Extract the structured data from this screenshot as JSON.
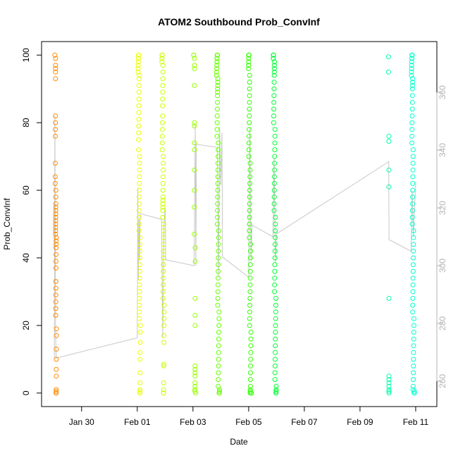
{
  "chart_data": {
    "type": "scatter",
    "title": "ATOM2 Southbound Prob_ConvInf",
    "xlabel": "Date",
    "ylabel": "Prob_ConvInf",
    "x_axis": {
      "type": "date",
      "range": [
        "2024-01-28T13:30",
        "2024-02-11T18:15"
      ],
      "ticks": [
        {
          "label": "Jan 30",
          "value": "2024-01-30T00:00"
        },
        {
          "label": "Feb 01",
          "value": "2024-02-01T00:00"
        },
        {
          "label": "Feb 03",
          "value": "2024-02-03T00:00"
        },
        {
          "label": "Feb 05",
          "value": "2024-02-05T00:00"
        },
        {
          "label": "Feb 07",
          "value": "2024-02-07T00:00"
        },
        {
          "label": "Feb 09",
          "value": "2024-02-09T00:00"
        },
        {
          "label": "Feb 11",
          "value": "2024-02-11T00:00"
        }
      ]
    },
    "y_axis": {
      "range": [
        -4,
        104
      ],
      "ticks": [
        0,
        20,
        40,
        60,
        80,
        100
      ]
    },
    "y2_axis": {
      "range": [
        251.2,
        377.6
      ],
      "ticks": [
        260,
        280,
        300,
        320,
        340,
        360
      ],
      "color": "#b3b3b3"
    },
    "grid": false,
    "legend": "none",
    "point_series": [
      {
        "start": "2024-01-29T01:00",
        "spread_hours": 1.5,
        "color": "#ff8c00",
        "values": [
          100,
          99,
          97,
          96,
          95,
          93,
          82,
          80,
          78,
          76,
          68,
          64,
          62,
          60,
          58,
          56,
          55,
          54,
          53,
          52,
          51,
          50,
          49,
          48,
          47,
          46,
          45,
          44,
          43,
          41,
          39,
          37,
          33,
          31,
          29,
          27,
          25,
          23,
          19,
          17,
          13,
          10,
          7,
          5,
          1,
          0.5,
          0,
          0,
          0
        ]
      },
      {
        "start": "2024-02-01T00:30",
        "spread_hours": 2.5,
        "color": "#e8ff00",
        "values": [
          100,
          100,
          100,
          100,
          99,
          99,
          98,
          97,
          96,
          95,
          94,
          93,
          91,
          89,
          87,
          85,
          83,
          81,
          79,
          77,
          75,
          72,
          70,
          68,
          66,
          64,
          62,
          60,
          58,
          56,
          54,
          52,
          50,
          48,
          46,
          44,
          42,
          40,
          38,
          36,
          34,
          32,
          30,
          28,
          26,
          24,
          22,
          20,
          18,
          15,
          12,
          10,
          6,
          3,
          1,
          0.5,
          0,
          0
        ]
      },
      {
        "start": "2024-02-01T21:00",
        "spread_hours": 2.5,
        "color": "#ccff00",
        "values": [
          100,
          100,
          100,
          99,
          99,
          98,
          97,
          95,
          93,
          91,
          89,
          87,
          85,
          82,
          80,
          78,
          76,
          74,
          72,
          70,
          68,
          66,
          64,
          62,
          60,
          58,
          57,
          56,
          55,
          54,
          52,
          50,
          48,
          46,
          44,
          42,
          40,
          38,
          36,
          34,
          32,
          30,
          28,
          26,
          24,
          22,
          20,
          17,
          15,
          8,
          8.5,
          3,
          1,
          0,
          0
        ]
      },
      {
        "start": "2024-02-03T00:30",
        "spread_hours": 2.0,
        "color": "#99ff00",
        "values": [
          100,
          100,
          100,
          99,
          97,
          96,
          91,
          80,
          79,
          74,
          72,
          66,
          60,
          55,
          47,
          43,
          39,
          28,
          23,
          20,
          8,
          7,
          6,
          5,
          3,
          2,
          1,
          0.5,
          0
        ]
      },
      {
        "start": "2024-02-03T20:00",
        "spread_hours": 3.0,
        "color": "#66ff00",
        "values": [
          100,
          100,
          100,
          100,
          99,
          99,
          98,
          98,
          97,
          96,
          95,
          94,
          93,
          92,
          91,
          90,
          89,
          88,
          86,
          84,
          82,
          80,
          78,
          76,
          74,
          72,
          70,
          68,
          66,
          64,
          62,
          60,
          58,
          56,
          54,
          52,
          50,
          48,
          46,
          44,
          42,
          40,
          38,
          36,
          34,
          32,
          30,
          28,
          26,
          24,
          22,
          20,
          18,
          16,
          14,
          12,
          10,
          8,
          6,
          4,
          2,
          1,
          0.5,
          0,
          0,
          0
        ]
      },
      {
        "start": "2024-02-04T23:30",
        "spread_hours": 3.0,
        "color": "#33ff00",
        "values": [
          100,
          100,
          100,
          100,
          99,
          98,
          97,
          96,
          94,
          92,
          90,
          88,
          86,
          84,
          82,
          80,
          78,
          76,
          74,
          72,
          70,
          68,
          66,
          64,
          62,
          60,
          58,
          56,
          54,
          52,
          50,
          48,
          46,
          44,
          42,
          40,
          38,
          36,
          34,
          32,
          30,
          28,
          26,
          24,
          22,
          20,
          18,
          16,
          14,
          12,
          10,
          8,
          6,
          4,
          2,
          1,
          0.5,
          0,
          0,
          0
        ]
      },
      {
        "start": "2024-02-05T21:00",
        "spread_hours": 3.0,
        "color": "#00ff33",
        "values": [
          100,
          100,
          100,
          99,
          99,
          98,
          97,
          96,
          95,
          94,
          92,
          90,
          88,
          86,
          84,
          82,
          80,
          78,
          76,
          74,
          72,
          70,
          68,
          66,
          64,
          62,
          60,
          58,
          56,
          54,
          52,
          50,
          48,
          46,
          44,
          42,
          40,
          38,
          36,
          34,
          32,
          30,
          28,
          26,
          24,
          22,
          20,
          18,
          16,
          14,
          12,
          10,
          8,
          6,
          4,
          2,
          1,
          0.5,
          0,
          0
        ]
      },
      {
        "start": "2024-02-10T00:30",
        "spread_hours": 0.8,
        "color": "#00ffaa",
        "values": [
          99.5,
          95,
          76,
          74.5,
          66,
          61,
          28,
          5,
          4,
          3,
          2,
          1,
          0.5,
          0
        ]
      },
      {
        "start": "2024-02-10T20:00",
        "spread_hours": 3.0,
        "color": "#00ffcc",
        "values": [
          100,
          100,
          100,
          100,
          99,
          99,
          98,
          97,
          96,
          95,
          94,
          93,
          92,
          91,
          90,
          88,
          86,
          84,
          82,
          80,
          78,
          76,
          74,
          72,
          70,
          68,
          66,
          64,
          62,
          60,
          58,
          56,
          54,
          52,
          50,
          48,
          46,
          44,
          42,
          40,
          38,
          36,
          34,
          32,
          30,
          28,
          26,
          24,
          22,
          20,
          18,
          16,
          14,
          12,
          10,
          8,
          6,
          4,
          2,
          1,
          0.5,
          0,
          0,
          0
        ]
      }
    ],
    "line_series": {
      "axis": "y2",
      "color": "#c8c8c8",
      "points": [
        [
          "2024-01-29T00:30",
          268
        ],
        [
          "2024-01-29T01:00",
          352
        ],
        [
          "2024-01-29T01:30",
          280
        ],
        [
          "2024-01-29T02:00",
          268
        ],
        [
          "2024-02-01T00:00",
          275
        ],
        [
          "2024-02-01T00:30",
          327
        ],
        [
          "2024-02-01T01:00",
          295
        ],
        [
          "2024-02-01T01:30",
          316
        ],
        [
          "2024-02-01T02:00",
          302
        ],
        [
          "2024-02-01T02:30",
          318
        ],
        [
          "2024-02-01T21:00",
          316
        ],
        [
          "2024-02-01T22:00",
          275
        ],
        [
          "2024-02-01T23:00",
          314
        ],
        [
          "2024-02-02T00:00",
          320
        ],
        [
          "2024-02-02T00:30",
          302
        ],
        [
          "2024-02-03T01:00",
          300
        ],
        [
          "2024-02-03T02:00",
          349
        ],
        [
          "2024-02-03T02:30",
          300
        ],
        [
          "2024-02-03T03:00",
          342
        ],
        [
          "2024-02-03T21:00",
          341
        ],
        [
          "2024-02-03T22:00",
          296
        ],
        [
          "2024-02-03T23:00",
          348
        ],
        [
          "2024-02-04T00:00",
          328
        ],
        [
          "2024-02-04T01:00",
          346
        ],
        [
          "2024-02-04T01:30",
          303
        ],
        [
          "2024-02-05T00:00",
          296
        ],
        [
          "2024-02-05T01:00",
          348
        ],
        [
          "2024-02-05T02:00",
          302
        ],
        [
          "2024-02-05T03:00",
          314
        ],
        [
          "2024-02-05T21:00",
          310
        ],
        [
          "2024-02-05T22:00",
          337
        ],
        [
          "2024-02-05T23:00",
          301
        ],
        [
          "2024-02-06T00:00",
          311
        ],
        [
          "2024-02-10T00:45",
          336
        ],
        [
          "2024-02-10T01:00",
          309
        ],
        [
          "2024-02-10T20:00",
          305
        ],
        [
          "2024-02-10T21:00",
          326
        ],
        [
          "2024-02-10T22:00",
          310
        ],
        [
          "2024-02-11T00:00",
          329
        ]
      ]
    }
  }
}
